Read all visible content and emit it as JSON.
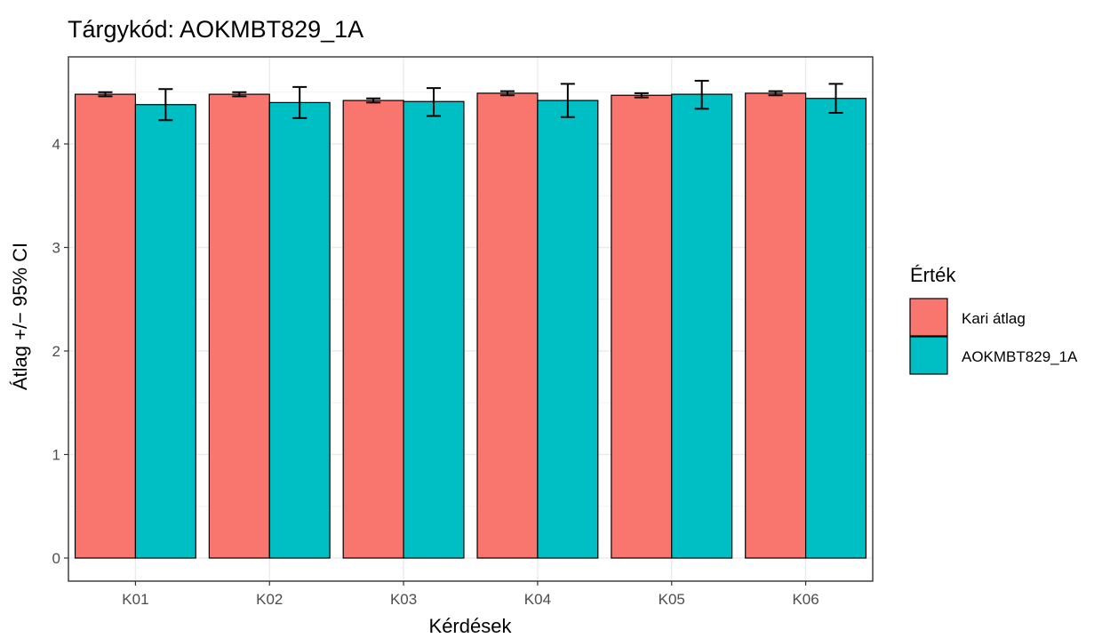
{
  "chart_data": {
    "type": "bar",
    "title": "Tárgykód:  AOKMBT829_1A",
    "xlabel": "Kérdések",
    "ylabel": "Átlag +/− 95% CI",
    "categories": [
      "K01",
      "K02",
      "K03",
      "K04",
      "K05",
      "K06"
    ],
    "ylim": [
      -0.15,
      4.8
    ],
    "yticks": [
      0,
      1,
      2,
      3,
      4
    ],
    "grid": true,
    "legend": {
      "title": "Érték",
      "position": "right"
    },
    "series": [
      {
        "name": "Kari átlag",
        "color": "#F8766D",
        "values": [
          4.48,
          4.48,
          4.42,
          4.49,
          4.47,
          4.49
        ],
        "ci_low": [
          4.46,
          4.46,
          4.4,
          4.47,
          4.45,
          4.47
        ],
        "ci_high": [
          4.5,
          4.5,
          4.44,
          4.51,
          4.49,
          4.51
        ]
      },
      {
        "name": "AOKMBT829_1A",
        "color": "#00BFC4",
        "values": [
          4.38,
          4.4,
          4.41,
          4.42,
          4.48,
          4.44
        ],
        "ci_low": [
          4.23,
          4.25,
          4.27,
          4.26,
          4.34,
          4.3
        ],
        "ci_high": [
          4.53,
          4.55,
          4.54,
          4.58,
          4.61,
          4.58
        ]
      }
    ]
  }
}
